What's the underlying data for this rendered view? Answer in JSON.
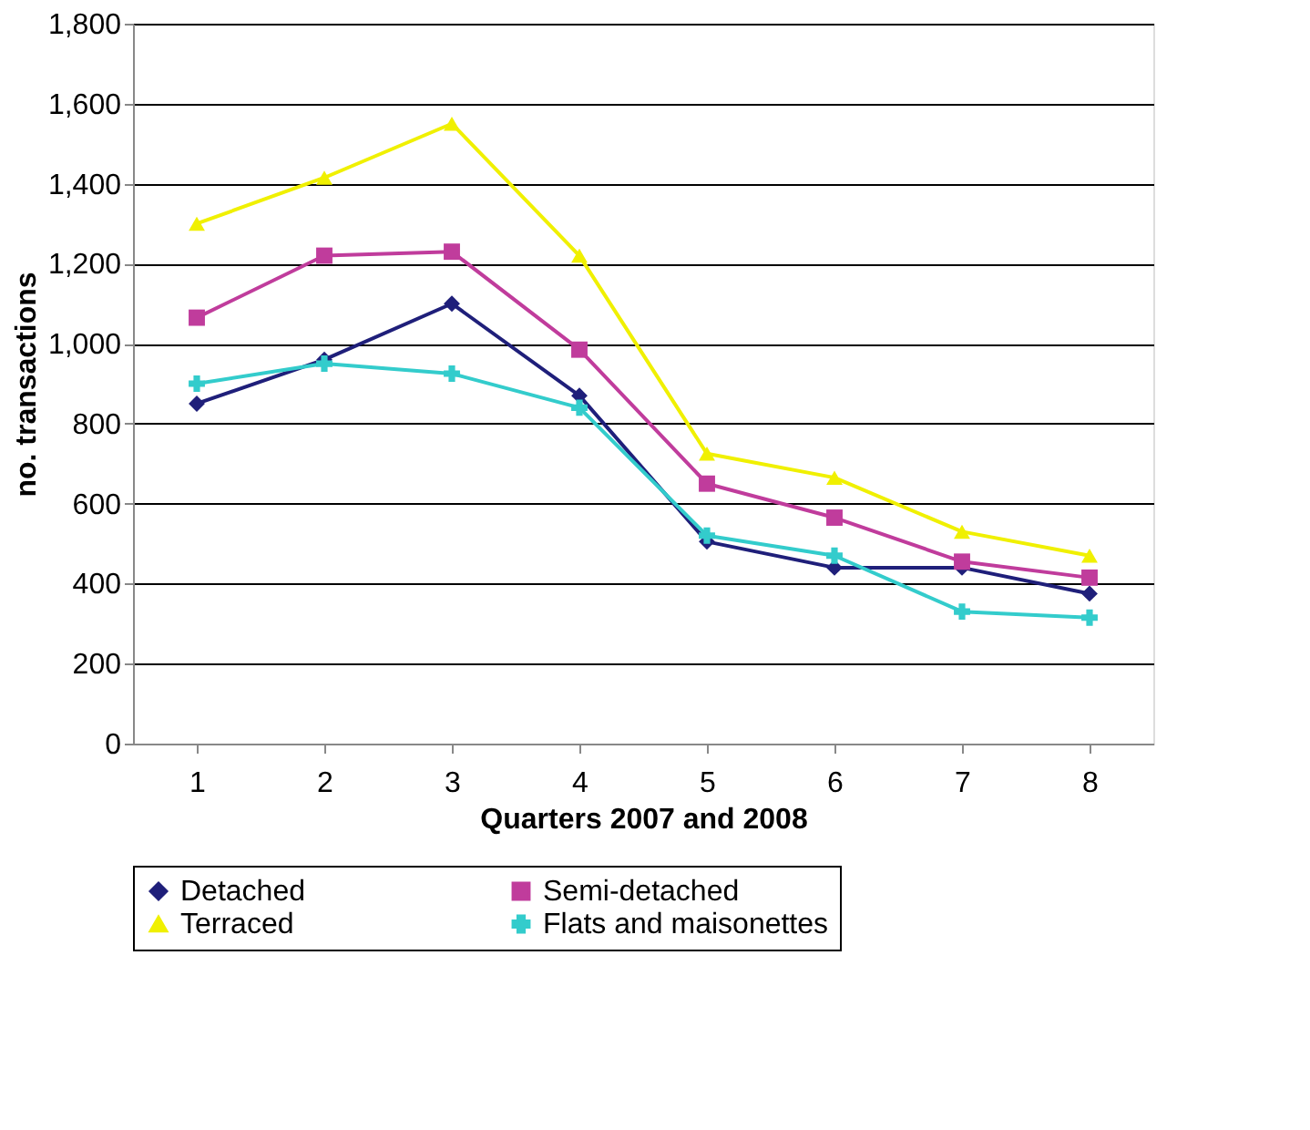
{
  "chart_data": {
    "type": "line",
    "xlabel": "Quarters 2007 and 2008",
    "ylabel": "no. transactions",
    "categories": [
      "1",
      "2",
      "3",
      "4",
      "5",
      "6",
      "7",
      "8"
    ],
    "series": [
      {
        "name": "Detached",
        "color": "#1f1f7a",
        "marker": "diamond",
        "values": [
          850,
          960,
          1100,
          870,
          505,
          440,
          440,
          375
        ]
      },
      {
        "name": "Semi-detached",
        "color": "#c03c9c",
        "marker": "square",
        "values": [
          1065,
          1220,
          1230,
          985,
          650,
          565,
          455,
          415
        ]
      },
      {
        "name": "Terraced",
        "color": "#f0f000",
        "marker": "triangle",
        "values": [
          1300,
          1415,
          1550,
          1220,
          725,
          665,
          530,
          470
        ]
      },
      {
        "name": "Flats and maisonettes",
        "color": "#33cccc",
        "marker": "cross",
        "values": [
          900,
          950,
          925,
          840,
          520,
          470,
          330,
          315
        ]
      }
    ],
    "ylim": [
      0,
      1800
    ],
    "yticks": [
      0,
      200,
      400,
      600,
      800,
      {
        "value": 1000,
        "label": "1,000"
      },
      {
        "value": 1200,
        "label": "1,200"
      },
      {
        "value": 1400,
        "label": "1,400"
      },
      {
        "value": 1600,
        "label": "1,600"
      },
      {
        "value": 1800,
        "label": "1,800"
      }
    ],
    "grid": "y",
    "legend": "bottom"
  }
}
